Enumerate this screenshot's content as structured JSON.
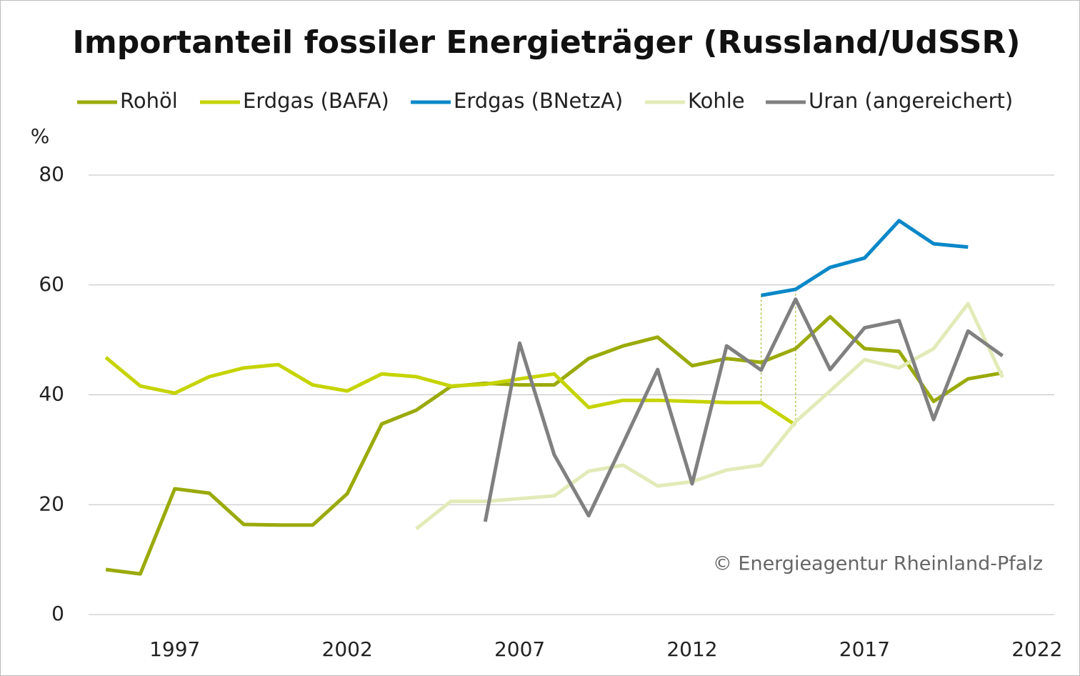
{
  "chart_data": {
    "type": "line",
    "title": "Importanteil fossiler Energieträger (Russland/UdSSR)",
    "y_label": "%",
    "annotation": "© Energieagentur Rheinland-Pfalz",
    "x": [
      1995,
      1996,
      1997,
      1998,
      1999,
      2000,
      2001,
      2002,
      2003,
      2004,
      2005,
      2006,
      2007,
      2008,
      2009,
      2010,
      2011,
      2012,
      2013,
      2014,
      2015,
      2016,
      2017,
      2018,
      2019,
      2020,
      2021
    ],
    "series": [
      {
        "name": "Rohöl",
        "color": "#9aaa0a",
        "values": [
          8.2,
          7.4,
          22.9,
          22.1,
          16.4,
          16.3,
          16.3,
          22.0,
          34.7,
          37.2,
          41.5,
          42.1,
          41.8,
          41.8,
          46.6,
          48.9,
          50.5,
          45.3,
          46.6,
          45.9,
          48.4,
          54.2,
          48.4,
          47.9,
          38.8,
          42.9,
          44.0
        ]
      },
      {
        "name": "Erdgas (BAFA)",
        "color": "#c5d400",
        "values": [
          46.8,
          41.6,
          40.3,
          43.3,
          44.9,
          45.5,
          41.8,
          40.7,
          43.8,
          43.3,
          41.6,
          41.9,
          42.9,
          43.8,
          37.7,
          39.0,
          39.0,
          38.8,
          38.6,
          38.6,
          34.5,
          null,
          null,
          null,
          null,
          null,
          null
        ]
      },
      {
        "name": "Erdgas (BNetzA)",
        "color": "#0a88c8",
        "values": [
          null,
          null,
          null,
          null,
          null,
          null,
          null,
          null,
          null,
          null,
          null,
          null,
          null,
          null,
          null,
          null,
          null,
          null,
          null,
          58.1,
          59.2,
          63.2,
          64.9,
          71.7,
          67.5,
          66.9,
          null
        ]
      },
      {
        "name": "Kohle",
        "color": "#e2ebb8",
        "values": [
          null,
          null,
          null,
          null,
          null,
          null,
          null,
          null,
          null,
          15.6,
          20.6,
          20.6,
          21.1,
          21.6,
          26.1,
          27.2,
          23.4,
          24.2,
          26.3,
          27.2,
          35.1,
          40.7,
          46.4,
          44.9,
          48.4,
          56.6,
          43.2
        ]
      },
      {
        "name": "Uran (angereichert)",
        "color": "#808080",
        "values": [
          null,
          null,
          null,
          null,
          null,
          null,
          null,
          null,
          null,
          null,
          null,
          16.9,
          49.4,
          29.1,
          18.0,
          31.2,
          44.6,
          23.8,
          48.9,
          44.5,
          57.4,
          44.6,
          52.2,
          53.5,
          35.5,
          51.6,
          47.1
        ]
      }
    ],
    "xlim": [
      1994.5,
      2022.5
    ],
    "xticks": [
      1997,
      2002,
      2007,
      2012,
      2017,
      2022
    ],
    "ylim": [
      0,
      80
    ],
    "yticks": [
      0,
      20,
      40,
      60,
      80
    ],
    "grid": true,
    "legend": "top"
  }
}
